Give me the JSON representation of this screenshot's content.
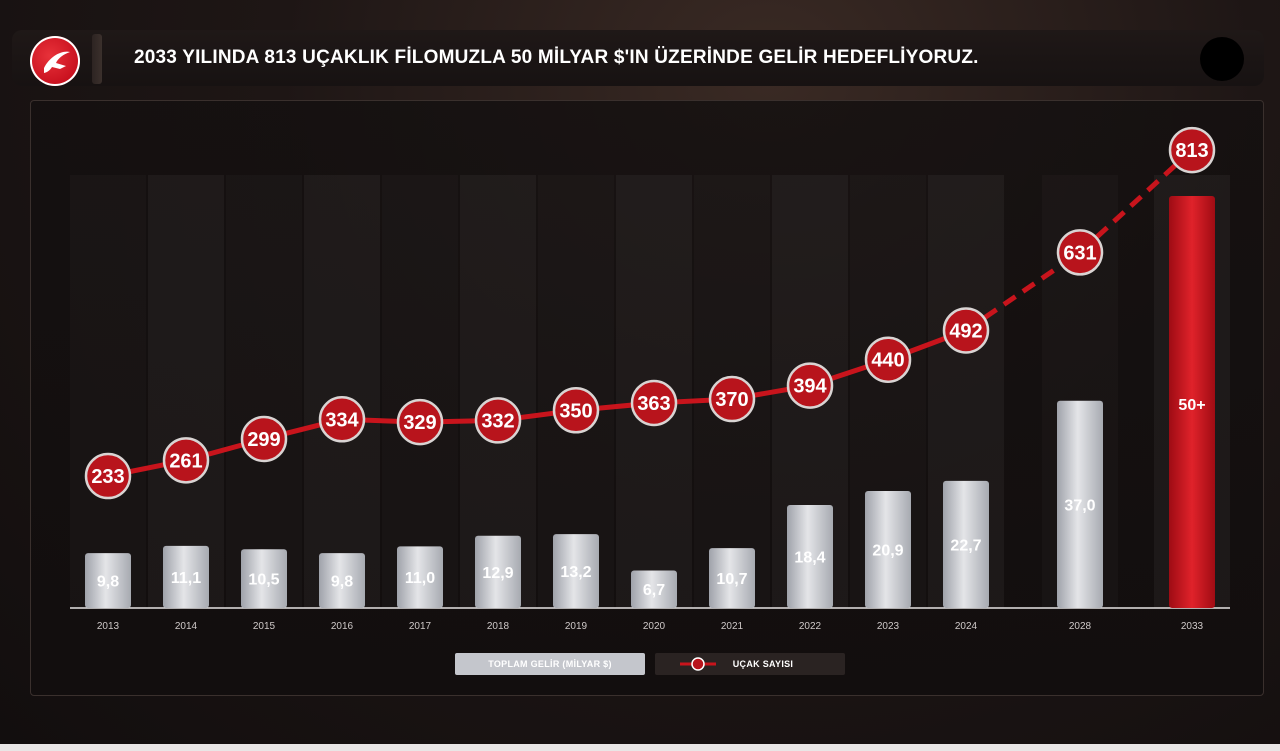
{
  "header": {
    "title": "2033 YILINDA 813 UÇAKLIK FİLOMUZLA 50 MİLYAR $'IN ÜZERİNDE GELİR HEDEFLİYORUZ."
  },
  "chart_data": {
    "type": "bar",
    "categories": [
      "2013",
      "2014",
      "2015",
      "2016",
      "2017",
      "2018",
      "2019",
      "2020",
      "2021",
      "2022",
      "2023",
      "2024",
      "2028",
      "2033"
    ],
    "series": [
      {
        "name": "TOPLAM GELİR (MİLYAR $)",
        "type": "bar",
        "values": [
          9.8,
          11.1,
          10.5,
          9.8,
          11.0,
          12.9,
          13.2,
          6.7,
          10.7,
          18.4,
          20.9,
          22.7,
          37.0,
          50
        ],
        "labels": [
          "9,8",
          "11,1",
          "10,5",
          "9,8",
          "11,0",
          "12,9",
          "13,2",
          "6,7",
          "10,7",
          "18,4",
          "20,9",
          "22,7",
          "37,0",
          "50+"
        ]
      },
      {
        "name": "UÇAK SAYISI",
        "type": "line",
        "values": [
          233,
          261,
          299,
          334,
          329,
          332,
          350,
          363,
          370,
          394,
          440,
          492,
          631,
          813
        ],
        "labels": [
          "233",
          "261",
          "299",
          "334",
          "329",
          "332",
          "350",
          "363",
          "370",
          "394",
          "440",
          "492",
          "631",
          "813"
        ],
        "dashed_from_index": 11
      }
    ],
    "highlight_category": "2033",
    "colors": {
      "bar": "#c9cbd1",
      "bar_highlight": "#c8141c",
      "line": "#c8141c",
      "marker": "#b8141c"
    },
    "legend": {
      "placement": "bottom-center",
      "items": [
        "TOPLAM GELİR (MİLYAR $)",
        "UÇAK SAYISI"
      ]
    }
  }
}
